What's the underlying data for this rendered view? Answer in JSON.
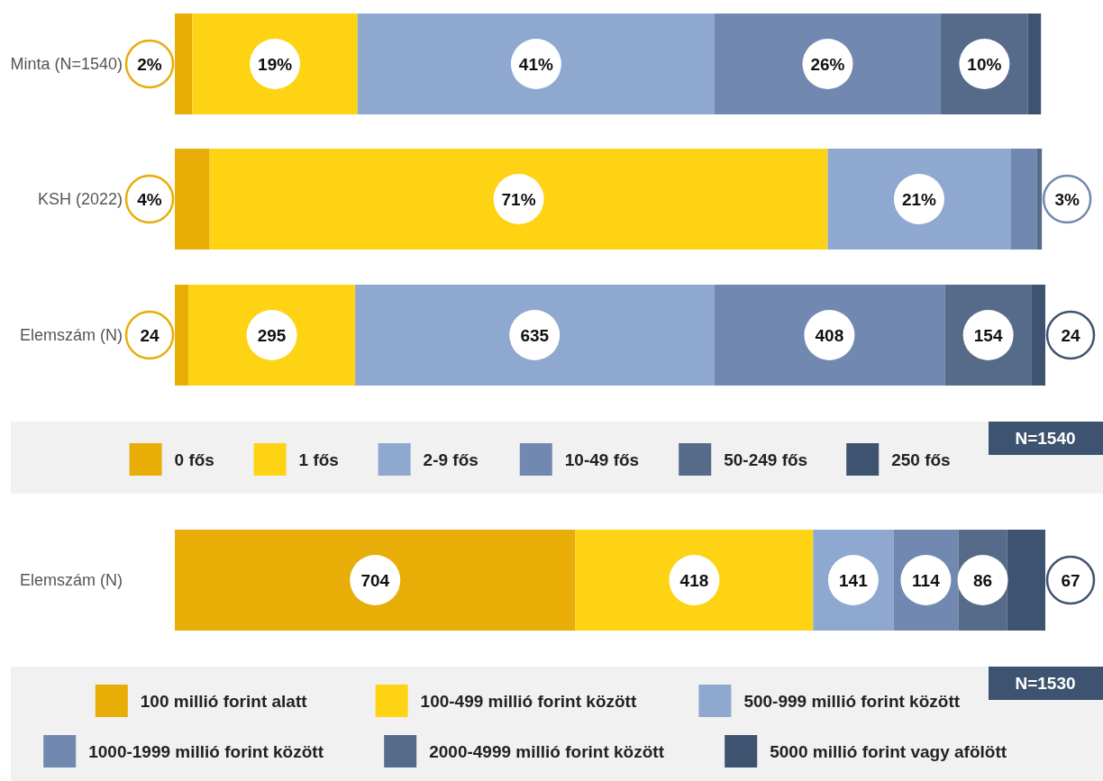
{
  "chart_data": [
    {
      "type": "bar",
      "orientation": "horizontal",
      "stacked": true,
      "categories": [
        "Minta (N=1540)",
        "KSH (2022)"
      ],
      "xlim": [
        0,
        100
      ],
      "tick_labels": "y",
      "legend": false,
      "series": [
        {
          "color": "#e8ad07",
          "values": [
            2,
            4
          ],
          "value_labels": [
            "2%",
            "4%"
          ]
        },
        {
          "color": "#fdd314",
          "values": [
            19,
            71
          ],
          "value_labels": [
            "19%",
            "71%"
          ]
        },
        {
          "color": "#8ea8d0",
          "values": [
            41,
            21
          ],
          "value_labels": [
            "41%",
            "21%"
          ]
        },
        {
          "color": "#7189b0",
          "values": [
            26,
            3
          ],
          "value_labels": [
            "26%",
            "3%"
          ]
        },
        {
          "color": "#566b8a",
          "values": [
            10,
            0.5
          ],
          "value_labels": [
            "10%",
            null
          ]
        },
        {
          "color": "#3e536f",
          "values": [
            1.5,
            0.1
          ],
          "value_labels": [
            null,
            null
          ]
        }
      ]
    },
    {
      "type": "bar",
      "orientation": "horizontal",
      "stacked": true,
      "categories": [
        "Elemszám (N)"
      ],
      "xlim": [
        0,
        1540
      ],
      "tick_labels": "y",
      "legend": "bottom",
      "data_labels": true,
      "annotations": [
        "N=1540"
      ],
      "series": [
        {
          "name": "0 fős",
          "color": "#e8ad07",
          "values": [
            24
          ]
        },
        {
          "name": "1 fős",
          "color": "#fdd314",
          "values": [
            295
          ]
        },
        {
          "name": "2-9 fős",
          "color": "#8ea8d0",
          "values": [
            635
          ]
        },
        {
          "name": "10-49 fős",
          "color": "#7189b0",
          "values": [
            408
          ]
        },
        {
          "name": "50-249 fős",
          "color": "#566b8a",
          "values": [
            154
          ]
        },
        {
          "name": "250 fős",
          "color": "#3e536f",
          "values": [
            24
          ]
        }
      ]
    },
    {
      "type": "bar",
      "orientation": "horizontal",
      "stacked": true,
      "categories": [
        "Elemszám (N)"
      ],
      "xlim": [
        0,
        1530
      ],
      "tick_labels": "y",
      "legend": "bottom",
      "data_labels": true,
      "annotations": [
        "N=1530"
      ],
      "series": [
        {
          "name": "100 millió forint alatt",
          "color": "#e8ad07",
          "values": [
            704
          ]
        },
        {
          "name": "100-499 millió forint között",
          "color": "#fdd314",
          "values": [
            418
          ]
        },
        {
          "name": "500-999 millió forint között",
          "color": "#8ea8d0",
          "values": [
            141
          ]
        },
        {
          "name": "1000-1999 millió forint között",
          "color": "#7189b0",
          "values": [
            114
          ]
        },
        {
          "name": "2000-4999 millió forint között",
          "color": "#566b8a",
          "values": [
            86
          ]
        },
        {
          "name": "5000 millió forint vagy afölött",
          "color": "#3e536f",
          "values": [
            67
          ]
        }
      ]
    }
  ]
}
